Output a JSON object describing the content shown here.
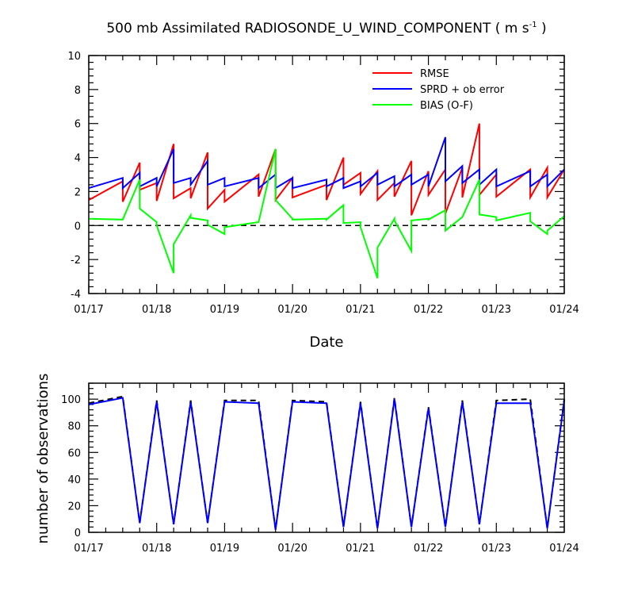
{
  "chart_data": [
    {
      "type": "line",
      "title_main": "500 mb Assimilated RADIOSONDE_U_WIND_COMPONENT ( m s",
      "title_exp": "-1",
      "title_close": " )",
      "xlabel": "Date",
      "ylabel": "",
      "ylim": [
        -4,
        10
      ],
      "yticks": [
        "-4",
        "-2",
        "0",
        "2",
        "4",
        "6",
        "8",
        "10"
      ],
      "xticks": [
        "01/17",
        "01/18",
        "01/19",
        "01/20",
        "01/21",
        "01/22",
        "01/23",
        "01/24"
      ],
      "zero_line": "dashed",
      "legend_position": "top-right",
      "series": [
        {
          "name": "RMSE",
          "color": "#ff0000",
          "x": [
            0,
            0.5,
            0.5,
            0.75,
            0.75,
            1,
            1,
            1.25,
            1.25,
            1.5,
            1.5,
            1.75,
            1.75,
            2,
            2,
            2.5,
            2.5,
            2.75,
            2.75,
            3,
            3,
            3.5,
            3.5,
            3.75,
            3.75,
            4,
            4,
            4.25,
            4.25,
            4.5,
            4.5,
            4.75,
            4.75,
            5,
            5,
            5.25,
            5.25,
            5.5,
            5.5,
            5.75,
            5.75,
            6,
            6,
            6.5,
            6.5,
            6.75,
            6.75,
            7
          ],
          "y": [
            1.5,
            2.6,
            1.4,
            3.7,
            2.1,
            2.5,
            1.45,
            4.8,
            1.6,
            2.2,
            1.6,
            4.3,
            1.0,
            2.1,
            1.4,
            3.0,
            1.7,
            4.5,
            1.5,
            2.8,
            1.65,
            2.4,
            1.5,
            4.0,
            2.4,
            3.1,
            1.85,
            3.2,
            1.5,
            2.5,
            1.7,
            3.8,
            0.6,
            3.2,
            1.8,
            3.3,
            0.7,
            3.4,
            1.65,
            6.0,
            1.8,
            3.0,
            1.7,
            3.3,
            1.65,
            3.4,
            1.65,
            3.3
          ]
        },
        {
          "name": "SPRD + ob error",
          "color": "#0000ff",
          "x": [
            0,
            0.5,
            0.5,
            0.75,
            0.75,
            1,
            1,
            1.25,
            1.25,
            1.5,
            1.5,
            1.75,
            1.75,
            2,
            2,
            2.5,
            2.5,
            2.75,
            2.75,
            3,
            3,
            3.5,
            3.5,
            3.75,
            3.75,
            4,
            4,
            4.25,
            4.25,
            4.5,
            4.5,
            4.75,
            4.75,
            5,
            5,
            5.25,
            5.25,
            5.5,
            5.5,
            5.75,
            5.75,
            6,
            6,
            6.5,
            6.5,
            6.75,
            6.75,
            7
          ],
          "y": [
            2.2,
            2.8,
            2.2,
            3.1,
            2.3,
            2.8,
            2.3,
            4.5,
            2.5,
            2.8,
            2.4,
            3.8,
            2.4,
            2.8,
            2.3,
            2.8,
            2.2,
            3.0,
            2.2,
            2.8,
            2.2,
            2.7,
            2.3,
            2.8,
            2.2,
            2.6,
            2.3,
            3.1,
            2.4,
            2.9,
            2.3,
            3.0,
            2.4,
            3.0,
            2.3,
            5.2,
            2.6,
            3.5,
            2.5,
            3.3,
            2.4,
            3.3,
            2.3,
            3.2,
            2.3,
            3.0,
            2.3,
            3.3
          ]
        },
        {
          "name": "BIAS (O-F)",
          "color": "#00ff00",
          "x": [
            0,
            0.5,
            0.5,
            0.75,
            0.75,
            1,
            1,
            1.25,
            1.25,
            1.5,
            1.5,
            1.75,
            1.75,
            2,
            2,
            2.5,
            2.5,
            2.75,
            2.75,
            3,
            3,
            3.5,
            3.5,
            3.75,
            3.75,
            4,
            4,
            4.25,
            4.25,
            4.5,
            4.5,
            4.75,
            4.75,
            5,
            5,
            5.25,
            5.25,
            5.5,
            5.5,
            5.75,
            5.75,
            6,
            6,
            6.5,
            6.5,
            6.75,
            6.75,
            7
          ],
          "y": [
            0.4,
            0.35,
            0.35,
            2.7,
            1.0,
            0.2,
            0.0,
            -2.8,
            -1.1,
            0.6,
            0.45,
            0.3,
            0.05,
            -0.5,
            -0.1,
            0.2,
            0.2,
            4.5,
            1.5,
            0.4,
            0.35,
            0.4,
            0.35,
            1.2,
            0.15,
            0.2,
            -0.1,
            -3.1,
            -1.3,
            0.4,
            0.3,
            -1.5,
            0.3,
            0.4,
            0.35,
            0.9,
            -0.3,
            0.5,
            0.5,
            2.7,
            0.65,
            0.5,
            0.3,
            0.75,
            0.25,
            -0.5,
            -0.3,
            0.55
          ]
        }
      ]
    },
    {
      "type": "line",
      "xlabel": "",
      "ylabel": "number of observations",
      "ylim": [
        0,
        112
      ],
      "yticks": [
        "0",
        "20",
        "40",
        "60",
        "80",
        "100"
      ],
      "xticks": [
        "01/17",
        "01/18",
        "01/19",
        "01/20",
        "01/21",
        "01/22",
        "01/23",
        "01/24"
      ],
      "series": [
        {
          "name": "",
          "color": "#000000",
          "style": "dashed",
          "x": [
            0,
            0.5,
            0.75,
            1,
            1.25,
            1.5,
            1.75,
            2,
            2.5,
            2.75,
            3,
            3.5,
            3.75,
            4,
            4.25,
            4.5,
            4.75,
            5,
            5.25,
            5.5,
            5.75,
            6,
            6.5,
            6.75,
            7
          ],
          "y": [
            97,
            102,
            7,
            99,
            6,
            99,
            7,
            99,
            99,
            2,
            99,
            98,
            4,
            98,
            3,
            101,
            4,
            94,
            4,
            99,
            6,
            99,
            100,
            3,
            100
          ]
        },
        {
          "name": "",
          "color": "#0000ff",
          "style": "solid",
          "x": [
            0,
            0.5,
            0.75,
            1,
            1.25,
            1.5,
            1.75,
            2,
            2.5,
            2.75,
            3,
            3.5,
            3.75,
            4,
            4.25,
            4.5,
            4.75,
            5,
            5.25,
            5.5,
            5.75,
            6,
            6.5,
            6.75,
            7
          ],
          "y": [
            96,
            101,
            7,
            98,
            6,
            98,
            7,
            98,
            97,
            2,
            98,
            97,
            4,
            97,
            3,
            100,
            4,
            93,
            4,
            98,
            6,
            97,
            97,
            3,
            99
          ]
        }
      ]
    }
  ]
}
